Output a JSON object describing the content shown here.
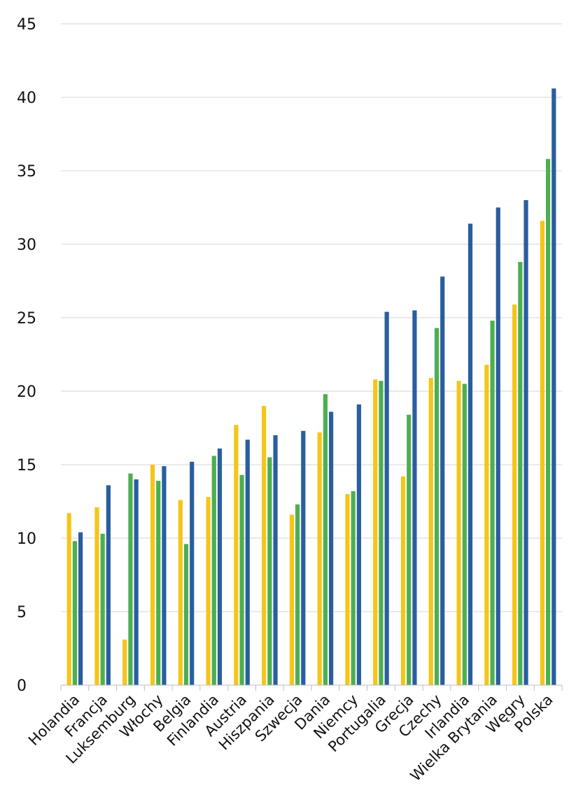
{
  "chart_data": {
    "type": "bar",
    "title": "",
    "xlabel": "",
    "ylabel": "",
    "ylim": [
      0,
      45
    ],
    "yticks": [
      "0",
      "5",
      "10",
      "15",
      "20",
      "25",
      "30",
      "35",
      "40",
      "45"
    ],
    "grid": true,
    "legend": "none",
    "categories": [
      "Holandia",
      "Francja",
      "Luksemburg",
      "Włochy",
      "Belgia",
      "Finlandia",
      "Austria",
      "Hiszpania",
      "Szwecja",
      "Dania",
      "Niemcy",
      "Portugalia",
      "Grecja",
      "Czechy",
      "Irlandia",
      "Wielka Brytania",
      "Węgry",
      "Polska"
    ],
    "series": [
      {
        "color": "#f5c518",
        "values": [
          11.7,
          12.1,
          3.1,
          15.0,
          12.6,
          12.8,
          17.7,
          19.0,
          11.6,
          17.2,
          13.0,
          20.8,
          14.2,
          20.9,
          20.7,
          21.8,
          25.9,
          31.6
        ]
      },
      {
        "color": "#4caf50",
        "values": [
          9.8,
          10.3,
          14.4,
          13.9,
          9.6,
          15.6,
          14.3,
          15.5,
          12.3,
          19.8,
          13.2,
          20.7,
          18.4,
          24.3,
          20.5,
          24.8,
          28.8,
          35.8
        ]
      },
      {
        "color": "#2a5e9e",
        "values": [
          10.4,
          13.6,
          14.0,
          14.9,
          15.2,
          16.1,
          16.7,
          17.0,
          17.3,
          18.6,
          19.1,
          25.4,
          25.5,
          27.8,
          31.4,
          32.5,
          33.0,
          40.6
        ]
      }
    ]
  }
}
